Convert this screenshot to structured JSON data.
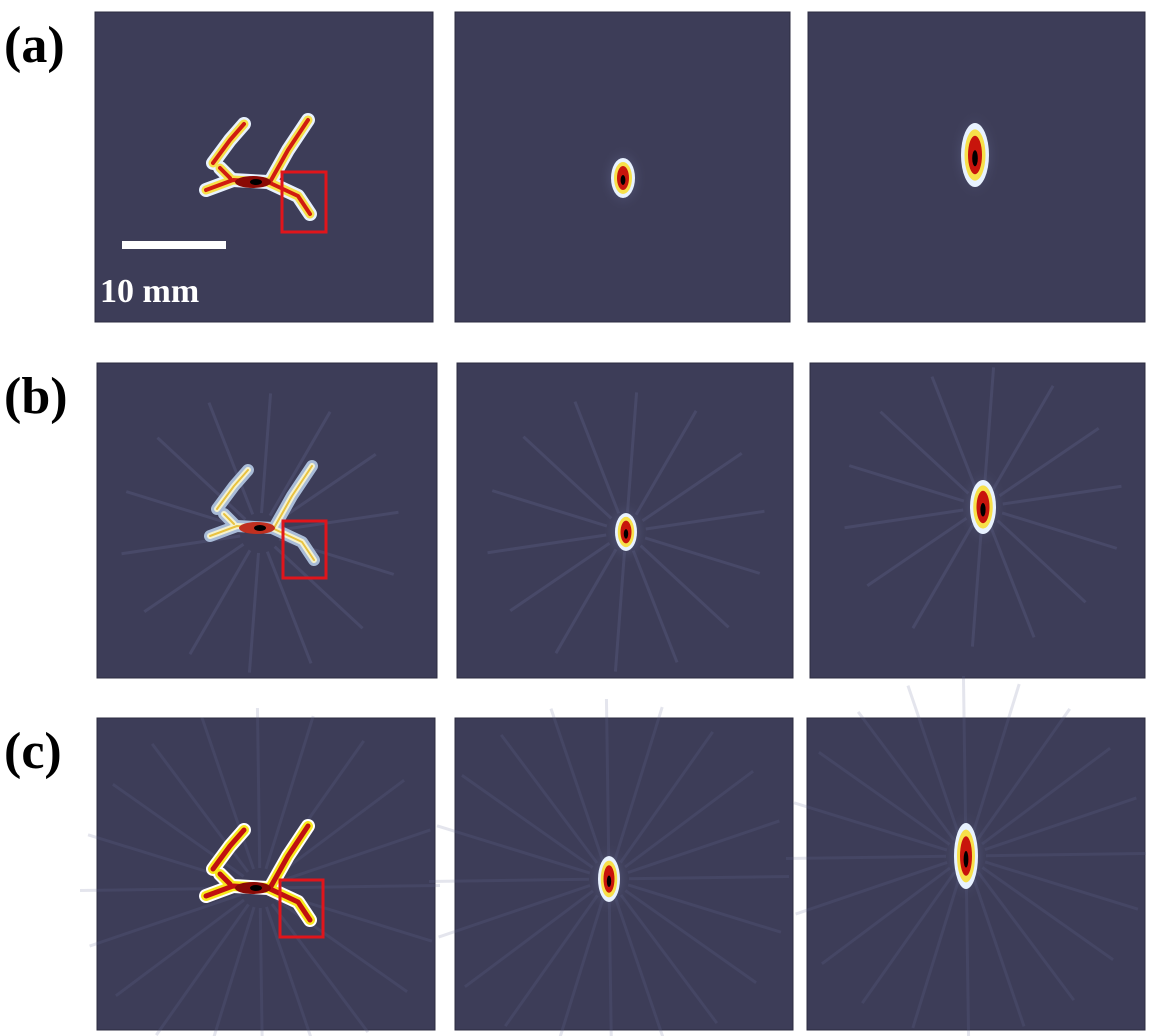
{
  "rows": [
    {
      "label": "(a)"
    },
    {
      "label": "(b)"
    },
    {
      "label": "(c)"
    }
  ],
  "scale_bar": {
    "label": "10 mm"
  }
}
